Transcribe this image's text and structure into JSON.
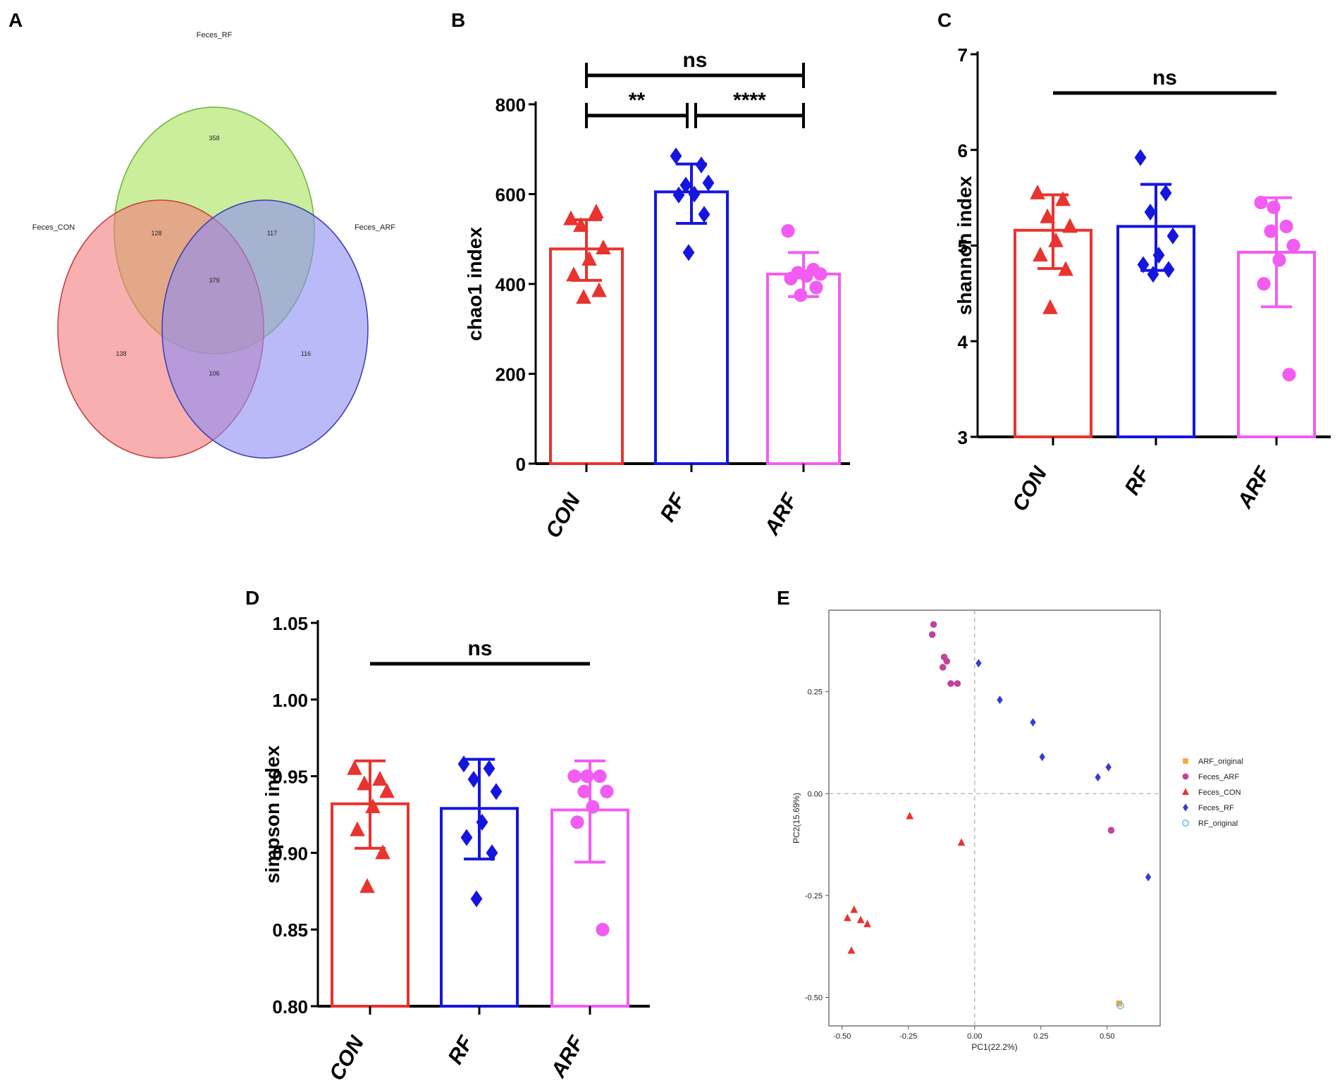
{
  "panel_letters": [
    "A",
    "B",
    "C",
    "D",
    "E"
  ],
  "chart_data": [
    {
      "panel": "A",
      "type": "venn",
      "sets": [
        {
          "name": "Feces_RF",
          "color": "#a6e35a"
        },
        {
          "name": "Feces_CON",
          "color": "#f47a7a"
        },
        {
          "name": "Feces_ARF",
          "color": "#8c8cf5"
        }
      ],
      "regions": {
        "rf_only": "358",
        "con_only": "138",
        "arf_only": "116",
        "rf_con": "128",
        "rf_arf": "117",
        "con_arf": "106",
        "all": "379"
      }
    },
    {
      "panel": "B",
      "type": "bar",
      "ylabel": "chao1 index",
      "ylim": [
        0,
        800
      ],
      "yticks": [
        "0",
        "200",
        "400",
        "600",
        "800"
      ],
      "categories": [
        "CON",
        "RF",
        "ARF"
      ],
      "colors": [
        "#e8332f",
        "#1515e0",
        "#f25cf2"
      ],
      "means": [
        478,
        605,
        422
      ],
      "err_low": [
        408,
        535,
        372
      ],
      "err_high": [
        543,
        667,
        470
      ],
      "points": [
        [
          545,
          560,
          530,
          480,
          455,
          420,
          385,
          370
        ],
        [
          685,
          665,
          620,
          625,
          600,
          598,
          555,
          470
        ],
        [
          518,
          432,
          425,
          422,
          418,
          412,
          392,
          375
        ]
      ],
      "markers": [
        "triangle",
        "diamond",
        "circle"
      ],
      "sig": [
        {
          "from": 0,
          "to": 2,
          "label": "ns",
          "level": 2
        },
        {
          "from": 0,
          "to": 1,
          "label": "**",
          "level": 1
        },
        {
          "from": 1,
          "to": 2,
          "label": "****",
          "level": 1
        }
      ]
    },
    {
      "panel": "C",
      "type": "bar",
      "ylabel": "shannon index",
      "ylim": [
        3,
        7
      ],
      "yticks": [
        "3",
        "4",
        "5",
        "6",
        "7"
      ],
      "categories": [
        "CON",
        "RF",
        "ARF"
      ],
      "colors": [
        "#e8332f",
        "#1515e0",
        "#f25cf2"
      ],
      "means": [
        5.16,
        5.2,
        4.93
      ],
      "err_low": [
        4.76,
        4.74,
        4.36
      ],
      "err_high": [
        5.53,
        5.64,
        5.5
      ],
      "points": [
        [
          5.55,
          5.48,
          5.3,
          5.2,
          5.05,
          4.9,
          4.75,
          4.35
        ],
        [
          5.92,
          5.55,
          5.35,
          5.1,
          4.9,
          4.8,
          4.75,
          4.7
        ],
        [
          5.45,
          5.2,
          5.15,
          5.0,
          4.85,
          4.6,
          3.65,
          5.4
        ]
      ],
      "markers": [
        "triangle",
        "diamond",
        "circle"
      ],
      "sig": [
        {
          "from": 0,
          "to": 2,
          "label": "ns",
          "level": 1
        }
      ]
    },
    {
      "panel": "D",
      "type": "bar",
      "ylabel": "simpson index",
      "ylim": [
        0.8,
        1.05
      ],
      "yticks": [
        "0.80",
        "0.85",
        "0.90",
        "0.95",
        "1.00",
        "1.05"
      ],
      "categories": [
        "CON",
        "RF",
        "ARF"
      ],
      "colors": [
        "#e8332f",
        "#1515e0",
        "#f25cf2"
      ],
      "means": [
        0.932,
        0.929,
        0.928
      ],
      "err_low": [
        0.903,
        0.896,
        0.894
      ],
      "err_high": [
        0.96,
        0.961,
        0.96
      ],
      "points": [
        [
          0.955,
          0.948,
          0.945,
          0.94,
          0.93,
          0.915,
          0.9,
          0.878
        ],
        [
          0.958,
          0.955,
          0.948,
          0.94,
          0.92,
          0.91,
          0.9,
          0.87
        ],
        [
          0.95,
          0.95,
          0.94,
          0.94,
          0.93,
          0.92,
          0.85,
          0.95
        ]
      ],
      "markers": [
        "triangle",
        "diamond",
        "circle"
      ],
      "sig": [
        {
          "from": 0,
          "to": 2,
          "label": "ns",
          "level": 1
        }
      ]
    },
    {
      "panel": "E",
      "type": "scatter",
      "xlabel": "PC1(22.2%)",
      "ylabel": "PC2(15.69%)",
      "xlim": [
        -0.55,
        0.7
      ],
      "ylim": [
        -0.57,
        0.45
      ],
      "xticks": [
        "-0.50",
        "-0.25",
        "0.00",
        "0.25",
        "0.50"
      ],
      "xtick_values": [
        -0.5,
        -0.25,
        0,
        0.25,
        0.5
      ],
      "yticks": [
        "-0.50",
        "-0.25",
        "0.00",
        "0.25"
      ],
      "ytick_values": [
        -0.5,
        -0.25,
        0,
        0.25
      ],
      "series": [
        {
          "name": "ARF_original",
          "color": "#f5a742",
          "marker": "square",
          "x": [
            0.545
          ],
          "y": [
            -0.515
          ]
        },
        {
          "name": "Feces_ARF",
          "color": "#c0449f",
          "marker": "circle",
          "x": [
            -0.155,
            -0.16,
            -0.115,
            -0.105,
            -0.12,
            -0.09,
            -0.065,
            0.515
          ],
          "y": [
            0.415,
            0.39,
            0.335,
            0.325,
            0.31,
            0.27,
            0.27,
            -0.09
          ]
        },
        {
          "name": "Feces_CON",
          "color": "#e8332f",
          "marker": "triangle",
          "x": [
            -0.245,
            -0.05,
            -0.455,
            -0.48,
            -0.43,
            -0.405,
            -0.465
          ],
          "y": [
            -0.055,
            -0.12,
            -0.285,
            -0.305,
            -0.31,
            -0.32,
            -0.385
          ]
        },
        {
          "name": "Feces_RF",
          "color": "#3a3ad6",
          "marker": "diamond",
          "x": [
            0.015,
            0.095,
            0.22,
            0.255,
            0.465,
            0.505,
            0.655
          ],
          "y": [
            0.32,
            0.23,
            0.175,
            0.09,
            0.04,
            0.065,
            -0.205
          ]
        },
        {
          "name": "RF_original",
          "color": "#4fc7e6",
          "marker": "open-circle",
          "x": [
            0.55
          ],
          "y": [
            -0.52
          ]
        }
      ],
      "legend": [
        "ARF_original",
        "Feces_ARF",
        "Feces_CON",
        "Feces_RF",
        "RF_original"
      ]
    }
  ]
}
